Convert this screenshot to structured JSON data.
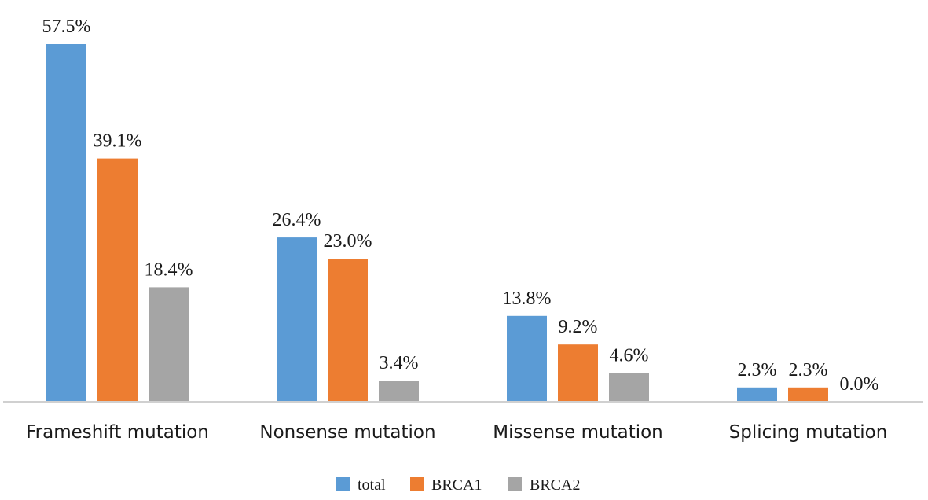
{
  "chart_data": {
    "type": "bar",
    "categories": [
      "Frameshift mutation",
      "Nonsense mutation",
      "Missense mutation",
      "Splicing mutation"
    ],
    "series": [
      {
        "name": "total",
        "color": "#5b9bd5",
        "values": [
          57.5,
          26.4,
          13.8,
          2.3
        ],
        "labels": [
          "57.5%",
          "26.4%",
          "13.8%",
          "2.3%"
        ]
      },
      {
        "name": "BRCA1",
        "color": "#ed7d31",
        "values": [
          39.1,
          23.0,
          9.2,
          2.3
        ],
        "labels": [
          "39.1%",
          "23.0%",
          "9.2%",
          "2.3%"
        ]
      },
      {
        "name": "BRCA2",
        "color": "#a5a5a5",
        "values": [
          18.4,
          3.4,
          4.6,
          0.0
        ],
        "labels": [
          "18.4%",
          "3.4%",
          "4.6%",
          "0.0%"
        ]
      }
    ],
    "ylim": [
      0,
      60
    ],
    "grid": false,
    "legend_position": "bottom",
    "title": "",
    "xlabel": "",
    "ylabel": ""
  }
}
